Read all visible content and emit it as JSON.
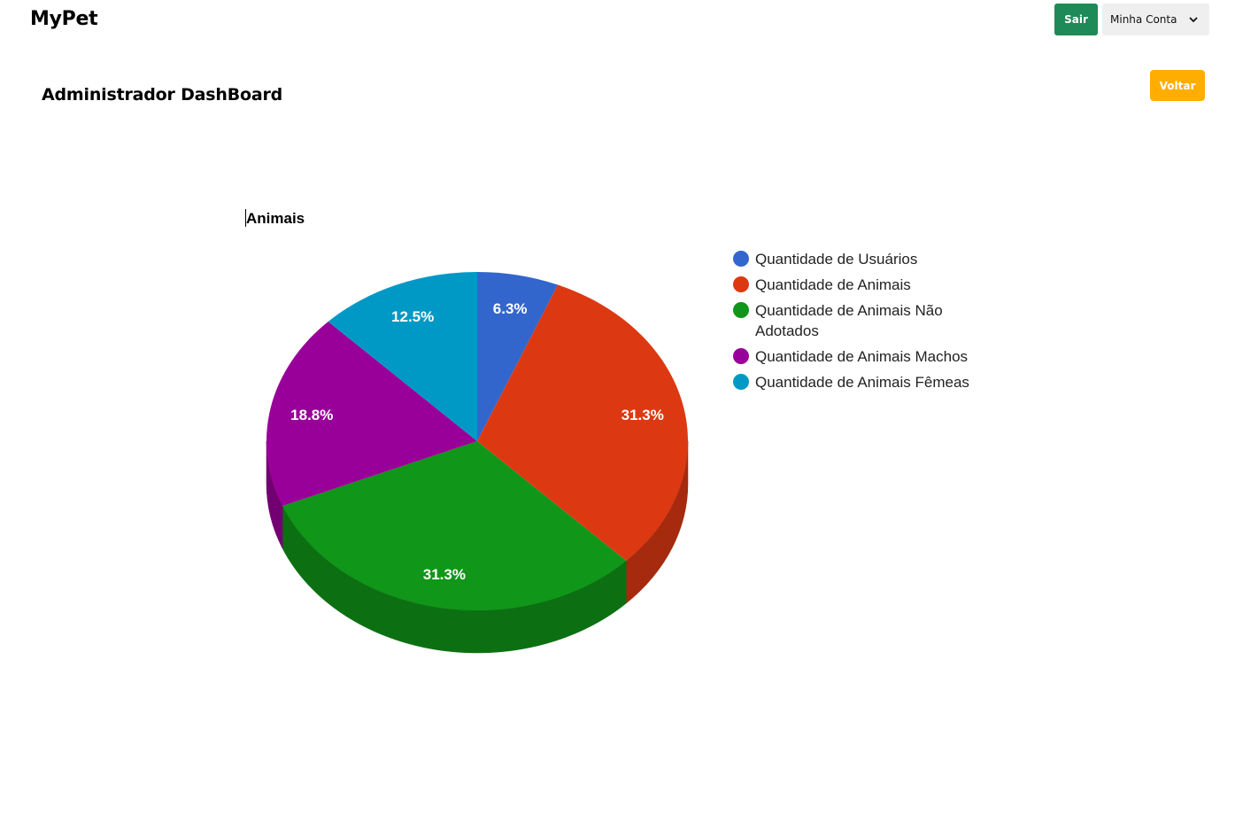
{
  "header": {
    "brand": "MyPet",
    "logout_label": "Sair",
    "account_label": "Minha Conta",
    "account_icon": "chevron-down-icon"
  },
  "main": {
    "title": "Administrador DashBoard",
    "back_label": "Voltar"
  },
  "colors": {
    "primary_green": "#1e8a57",
    "warning_orange": "#ffae00"
  },
  "chart_data": {
    "type": "pie",
    "title": "Animais",
    "is_3d": true,
    "legend_position": "right",
    "slices": [
      {
        "label": "Quantidade de Usuários",
        "value": 6.25,
        "display": "6.3%",
        "color": "#3366cc",
        "side": "#2a4f9d"
      },
      {
        "label": "Quantidade de Animais",
        "value": 31.25,
        "display": "31.3%",
        "color": "#dc3912",
        "side": "#a52a0e"
      },
      {
        "label": "Quantidade de Animais Não Adotados",
        "value": 31.25,
        "display": "31.3%",
        "color": "#109618",
        "side": "#0c7012"
      },
      {
        "label": "Quantidade de Animais Machos",
        "value": 18.75,
        "display": "18.8%",
        "color": "#990099",
        "side": "#720072"
      },
      {
        "label": "Quantidade de Animais Fêmeas",
        "value": 12.5,
        "display": "12.5%",
        "color": "#0099c6",
        "side": "#007394"
      }
    ]
  }
}
